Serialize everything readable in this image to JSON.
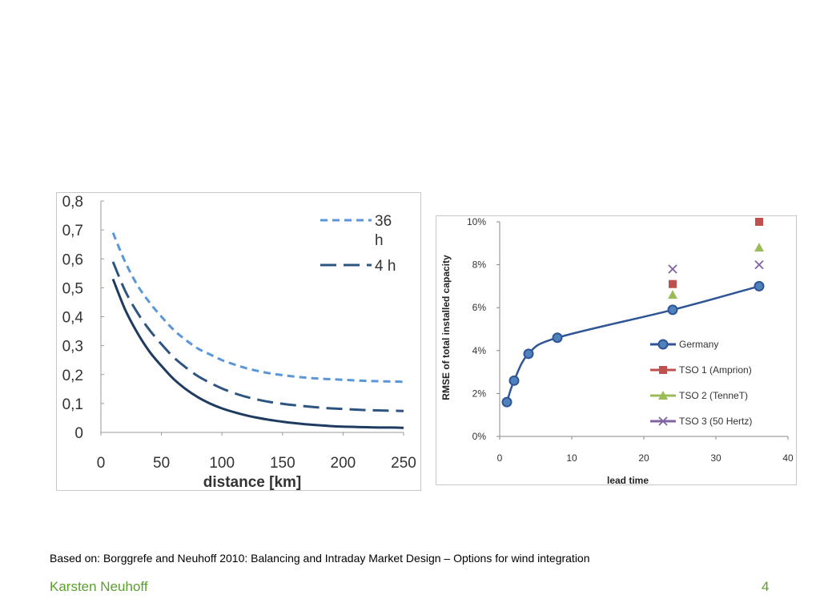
{
  "chart_data": [
    {
      "type": "line",
      "xlabel": "distance [km]",
      "ylabel": "",
      "xlim": [
        0,
        250
      ],
      "ylim": [
        0,
        0.8
      ],
      "x_ticks": [
        "0",
        "50",
        "100",
        "150",
        "200",
        "250"
      ],
      "y_ticks": [
        "0",
        "0,1",
        "0,2",
        "0,3",
        "0,4",
        "0,5",
        "0,6",
        "0,7",
        "0,8"
      ],
      "legend_position": "top-right",
      "series": [
        {
          "name": "36 h",
          "name_lines": [
            "36",
            "h"
          ],
          "style": "short-dash",
          "color": "#5a96d8",
          "x": [
            10,
            20,
            30,
            40,
            50,
            60,
            70,
            80,
            90,
            100,
            110,
            120,
            130,
            140,
            150,
            160,
            170,
            180,
            190,
            200,
            210,
            220,
            230,
            240,
            250
          ],
          "y": [
            0.69,
            0.59,
            0.51,
            0.45,
            0.4,
            0.355,
            0.32,
            0.29,
            0.27,
            0.25,
            0.235,
            0.222,
            0.212,
            0.204,
            0.198,
            0.193,
            0.189,
            0.186,
            0.184,
            0.182,
            0.18,
            0.178,
            0.177,
            0.176,
            0.175
          ]
        },
        {
          "name": "4 h",
          "name_lines": [
            "4 h"
          ],
          "style": "long-dash",
          "color": "#2e5582",
          "x": [
            10,
            20,
            30,
            40,
            50,
            60,
            70,
            80,
            90,
            100,
            110,
            120,
            130,
            140,
            150,
            160,
            170,
            180,
            190,
            200,
            210,
            220,
            230,
            240,
            250
          ],
          "y": [
            0.59,
            0.49,
            0.415,
            0.355,
            0.305,
            0.26,
            0.225,
            0.195,
            0.172,
            0.152,
            0.136,
            0.123,
            0.113,
            0.105,
            0.099,
            0.094,
            0.09,
            0.086,
            0.083,
            0.081,
            0.079,
            0.077,
            0.076,
            0.075,
            0.074
          ]
        },
        {
          "name": "",
          "style": "solid",
          "color": "#1f3b5f",
          "x": [
            10,
            20,
            30,
            40,
            50,
            60,
            70,
            80,
            90,
            100,
            110,
            120,
            130,
            140,
            150,
            160,
            170,
            180,
            190,
            200,
            210,
            220,
            230,
            240,
            250
          ],
          "y": [
            0.53,
            0.425,
            0.345,
            0.28,
            0.23,
            0.185,
            0.15,
            0.122,
            0.1,
            0.083,
            0.07,
            0.059,
            0.05,
            0.043,
            0.037,
            0.032,
            0.028,
            0.025,
            0.022,
            0.02,
            0.019,
            0.018,
            0.017,
            0.017,
            0.016
          ]
        }
      ]
    },
    {
      "type": "scatter",
      "xlabel": "lead time",
      "ylabel": "RMSE of total installed capacity",
      "xlim": [
        0,
        40
      ],
      "ylim": [
        0,
        10
      ],
      "x_ticks": [
        "0",
        "10",
        "20",
        "30",
        "40"
      ],
      "y_ticks": [
        "0%",
        "2%",
        "4%",
        "6%",
        "8%",
        "10%"
      ],
      "legend_position": "right",
      "series": [
        {
          "name": "Germany",
          "marker": "circle",
          "connected": true,
          "color": "#2f5597",
          "fill": "#4f81bd",
          "x": [
            1,
            2,
            4,
            8,
            24,
            36
          ],
          "y": [
            1.6,
            2.6,
            3.85,
            4.6,
            5.9,
            7.0
          ]
        },
        {
          "name": "TSO 1 (Amprion)",
          "marker": "square",
          "connected": false,
          "color": "#c0504d",
          "x": [
            24,
            36
          ],
          "y": [
            7.1,
            10.0
          ]
        },
        {
          "name": "TSO 2 (TenneT)",
          "marker": "triangle",
          "connected": false,
          "color": "#9bbb59",
          "x": [
            24,
            36
          ],
          "y": [
            6.6,
            8.8
          ]
        },
        {
          "name": "TSO 3 (50 Hertz)",
          "marker": "x",
          "connected": false,
          "color": "#8064a2",
          "x": [
            24,
            36
          ],
          "y": [
            7.8,
            8.0
          ]
        }
      ]
    }
  ],
  "footer": {
    "source": "Based on: Borggrefe and Neuhoff 2010: Balancing and Intraday Market Design – Options for wind integration",
    "author": "Karsten Neuhoff",
    "page_number": "4"
  }
}
